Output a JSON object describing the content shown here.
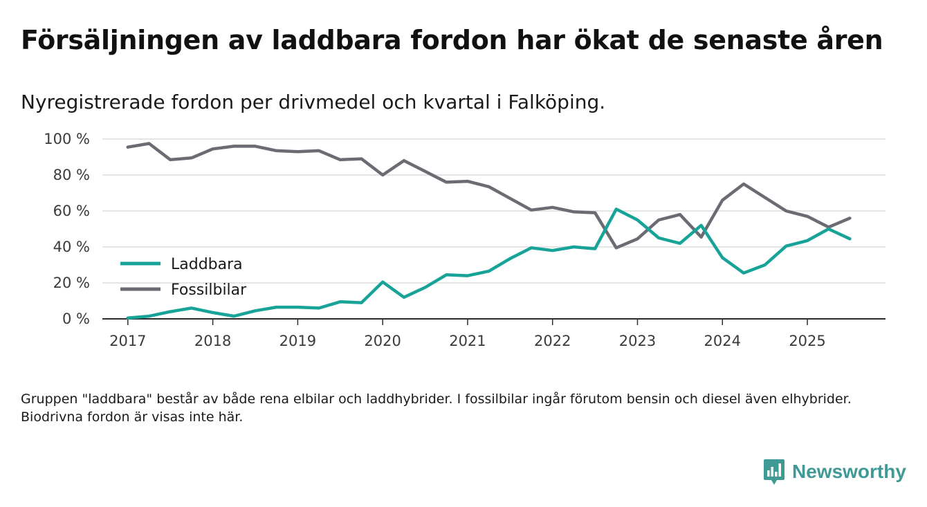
{
  "title": "Försäljningen av laddbara fordon har ökat de senaste åren",
  "subtitle": "Nyregistrerade fordon per drivmedel och kvartal i Falköping.",
  "note": "Gruppen \"laddbara\" består av både rena elbilar och laddhybrider. I fossilbilar ingår förutom bensin och diesel även elhybrider. Biodrivna fordon är visas inte här.",
  "brand": {
    "name": "Newsworthy",
    "icon": "newsworthy-logo-icon",
    "color": "#3f9a95"
  },
  "chart_data": {
    "type": "line",
    "title": "Försäljningen av laddbara fordon har ökat de senaste åren",
    "subtitle": "Nyregistrerade fordon per drivmedel och kvartal i Falköping.",
    "xlabel": "",
    "ylabel": "",
    "xlim": [
      2016.7,
      2025.92
    ],
    "ylim": [
      0,
      100
    ],
    "grid": true,
    "legend_position": "left, middle",
    "y_ticks": [
      {
        "value": 0,
        "label": "0 %"
      },
      {
        "value": 20,
        "label": "20 %"
      },
      {
        "value": 40,
        "label": "40 %"
      },
      {
        "value": 60,
        "label": "60 %"
      },
      {
        "value": 80,
        "label": "80 %"
      },
      {
        "value": 100,
        "label": "100 %"
      }
    ],
    "x_ticks": [
      {
        "value": 2017,
        "label": "2017"
      },
      {
        "value": 2018,
        "label": "2018"
      },
      {
        "value": 2019,
        "label": "2019"
      },
      {
        "value": 2020,
        "label": "2020"
      },
      {
        "value": 2021,
        "label": "2021"
      },
      {
        "value": 2022,
        "label": "2022"
      },
      {
        "value": 2023,
        "label": "2023"
      },
      {
        "value": 2024,
        "label": "2024"
      },
      {
        "value": 2025,
        "label": "2025"
      }
    ],
    "x": [
      2017.0,
      2017.25,
      2017.5,
      2017.75,
      2018.0,
      2018.25,
      2018.5,
      2018.75,
      2019.0,
      2019.25,
      2019.5,
      2019.75,
      2020.0,
      2020.25,
      2020.5,
      2020.75,
      2021.0,
      2021.25,
      2021.5,
      2021.75,
      2022.0,
      2022.25,
      2022.5,
      2022.75,
      2023.0,
      2023.25,
      2023.5,
      2023.75,
      2024.0,
      2024.25,
      2024.5,
      2024.75,
      2025.0,
      2025.25,
      2025.5
    ],
    "series": [
      {
        "name": "Laddbara",
        "color": "#17a398",
        "values": [
          0.5,
          1.5,
          4,
          6,
          3.5,
          1.5,
          4.5,
          6.5,
          6.5,
          6,
          9.5,
          9,
          20.5,
          12,
          17.5,
          24.5,
          24,
          26.5,
          33.5,
          39.5,
          38,
          40,
          39,
          61,
          55,
          45,
          42,
          52,
          34,
          25.5,
          30,
          40.5,
          43.5,
          50,
          44.5
        ]
      },
      {
        "name": "Fossilbilar",
        "color": "#6b6b73",
        "values": [
          95.5,
          97.5,
          88.5,
          89.5,
          94.5,
          96,
          96,
          93.5,
          93,
          93.5,
          88.5,
          89,
          80,
          88,
          82,
          76,
          76.5,
          73.5,
          67,
          60.5,
          62,
          59.5,
          59,
          39.5,
          44.5,
          55,
          58,
          45.5,
          66,
          75,
          67.5,
          60,
          57,
          51,
          56
        ]
      }
    ]
  }
}
